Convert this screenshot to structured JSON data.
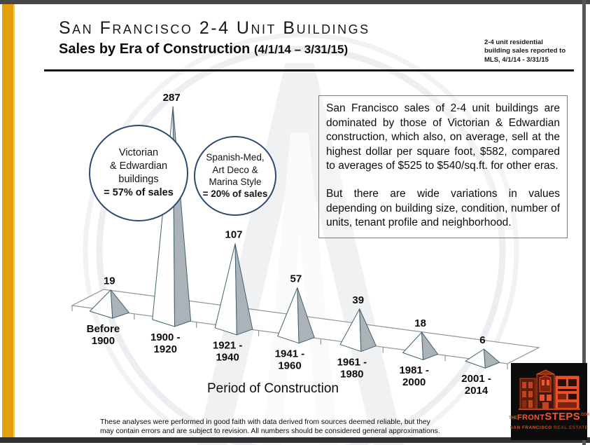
{
  "header": {
    "title": "San Francisco 2-4 Unit Buildings",
    "subtitle": "Sales by Era of Construction",
    "subtitle_period": "(4/1/14 – 3/31/15)",
    "note_lines": [
      "2-4 unit residential",
      "building sales reported to",
      "MLS, 4/1/14 - 3/31/15"
    ]
  },
  "callouts": [
    {
      "lines": [
        "Victorian",
        "& Edwardian",
        "buildings"
      ],
      "stat": "= 57% of sales"
    },
    {
      "lines": [
        "Spanish-Med,",
        "Art Deco &",
        "Marina Style"
      ],
      "stat": "= 20% of sales"
    }
  ],
  "commentary": {
    "p1": "San Francisco sales of 2-4 unit buildings are dominated by those of Victorian & Edwardian construction, which also, on average, sell at the highest dollar per square foot, $582, compared to averages of $525 to $540/sq.ft. for other eras.",
    "p2": "But there are wide variations in values depending on building size, condition, number of units, tenant profile and neighborhood."
  },
  "chart_data": {
    "type": "bar",
    "variant": "3d-pyramid",
    "title": "Sales by Era of Construction (4/1/14 – 3/31/15)",
    "categories": [
      "Before 1900",
      "1900 - 1920",
      "1921 - 1940",
      "1941 - 1960",
      "1961 - 1980",
      "1981 - 2000",
      "2001 - 2014"
    ],
    "values": [
      19,
      287,
      107,
      57,
      39,
      18,
      6
    ],
    "xlabel": "Period of Construction",
    "ylabel": "",
    "legend": false,
    "data_labels": true,
    "ylim": [
      0,
      300
    ]
  },
  "footer": {
    "disclaimer": "These analyses were performed in good faith with data derived from sources deemed reliable, but they may contain errors and are subject to revision. All numbers should be considered general approximations."
  },
  "logo": {
    "prefix": "THE",
    "front": "FRONT",
    "steps": "STEPS",
    "suffix": ".COM",
    "tagline_strong": "SAN FRANCISCO",
    "tagline_dim": "REAL ESTATE"
  },
  "colors": {
    "accent_gold": "#E2A00C",
    "frame_dark": "#48484b",
    "circle_navy": "#2C4A70",
    "pyramid_outline": "#41636F",
    "pyramid_front": "#FDFDFE",
    "pyramid_side": "#ABB3B8",
    "logo_orange": "#E8501F",
    "watermark_gray": "#EFF0F2"
  }
}
